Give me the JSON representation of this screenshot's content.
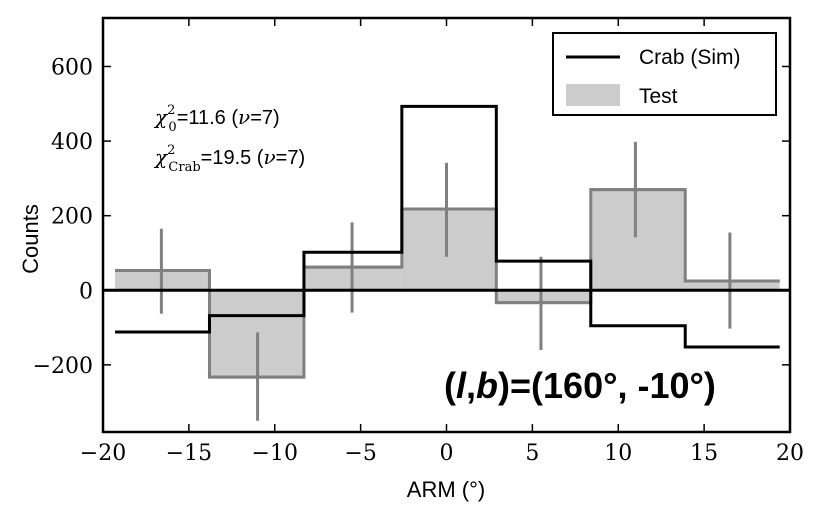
{
  "chart_data": {
    "type": "bar",
    "xlabel": "ARM (°)",
    "ylabel": "Counts",
    "xlim": [
      -20,
      20
    ],
    "ylim": [
      -380,
      730
    ],
    "x_ticks": [
      -20,
      -15,
      -10,
      -5,
      0,
      5,
      10,
      15,
      20
    ],
    "x_tick_labels": [
      "−20",
      "−15",
      "−10",
      "−5",
      "0",
      "5",
      "10",
      "15",
      "20"
    ],
    "y_ticks": [
      -200,
      0,
      200,
      400,
      600
    ],
    "y_tick_labels": [
      "−200",
      "0",
      "200",
      "400",
      "600"
    ],
    "bin_edges": [
      -19.3,
      -13.8,
      -8.3,
      -2.6,
      2.9,
      8.4,
      13.9,
      19.4
    ],
    "series": [
      {
        "name": "Test",
        "style": "filled-histogram",
        "fill_color": "#cccccc",
        "edge_color": "#808080",
        "bin_values": [
          53,
          -233,
          62,
          218,
          -33,
          270,
          25
        ],
        "error_low": [
          -63,
          -350,
          -60,
          90,
          -160,
          142,
          -103
        ],
        "error_high": [
          165,
          -113,
          182,
          342,
          90,
          398,
          155
        ],
        "bin_centers": [
          -16.6,
          -11.0,
          -5.5,
          0.0,
          5.5,
          11.0,
          16.5
        ]
      },
      {
        "name": "Crab (Sim)",
        "style": "step",
        "line_color": "#000000",
        "bin_values": [
          -112,
          -68,
          102,
          493,
          78,
          -95,
          -152
        ]
      }
    ],
    "zero_line": 0,
    "legend": {
      "position": "top-right",
      "entries": [
        "Crab (Sim)",
        "Test"
      ]
    }
  },
  "annotations": {
    "chi0_lhs": "χ",
    "chi0_sup": "2",
    "chi0_sub": "0",
    "chi0_rhs": "=11.6 (",
    "chi0_nu": "ν",
    "chi0_tail": "=7)",
    "chicrab_lhs": "χ",
    "chicrab_sup": "2",
    "chicrab_sub": "Crab",
    "chicrab_rhs": "=19.5 (",
    "chicrab_nu": "ν",
    "chicrab_tail": "=7)",
    "position_label": "(l,b)=(160°, -10°)",
    "position_l": "l",
    "position_b": "b",
    "position_value": ")=(160°, -10°)"
  }
}
